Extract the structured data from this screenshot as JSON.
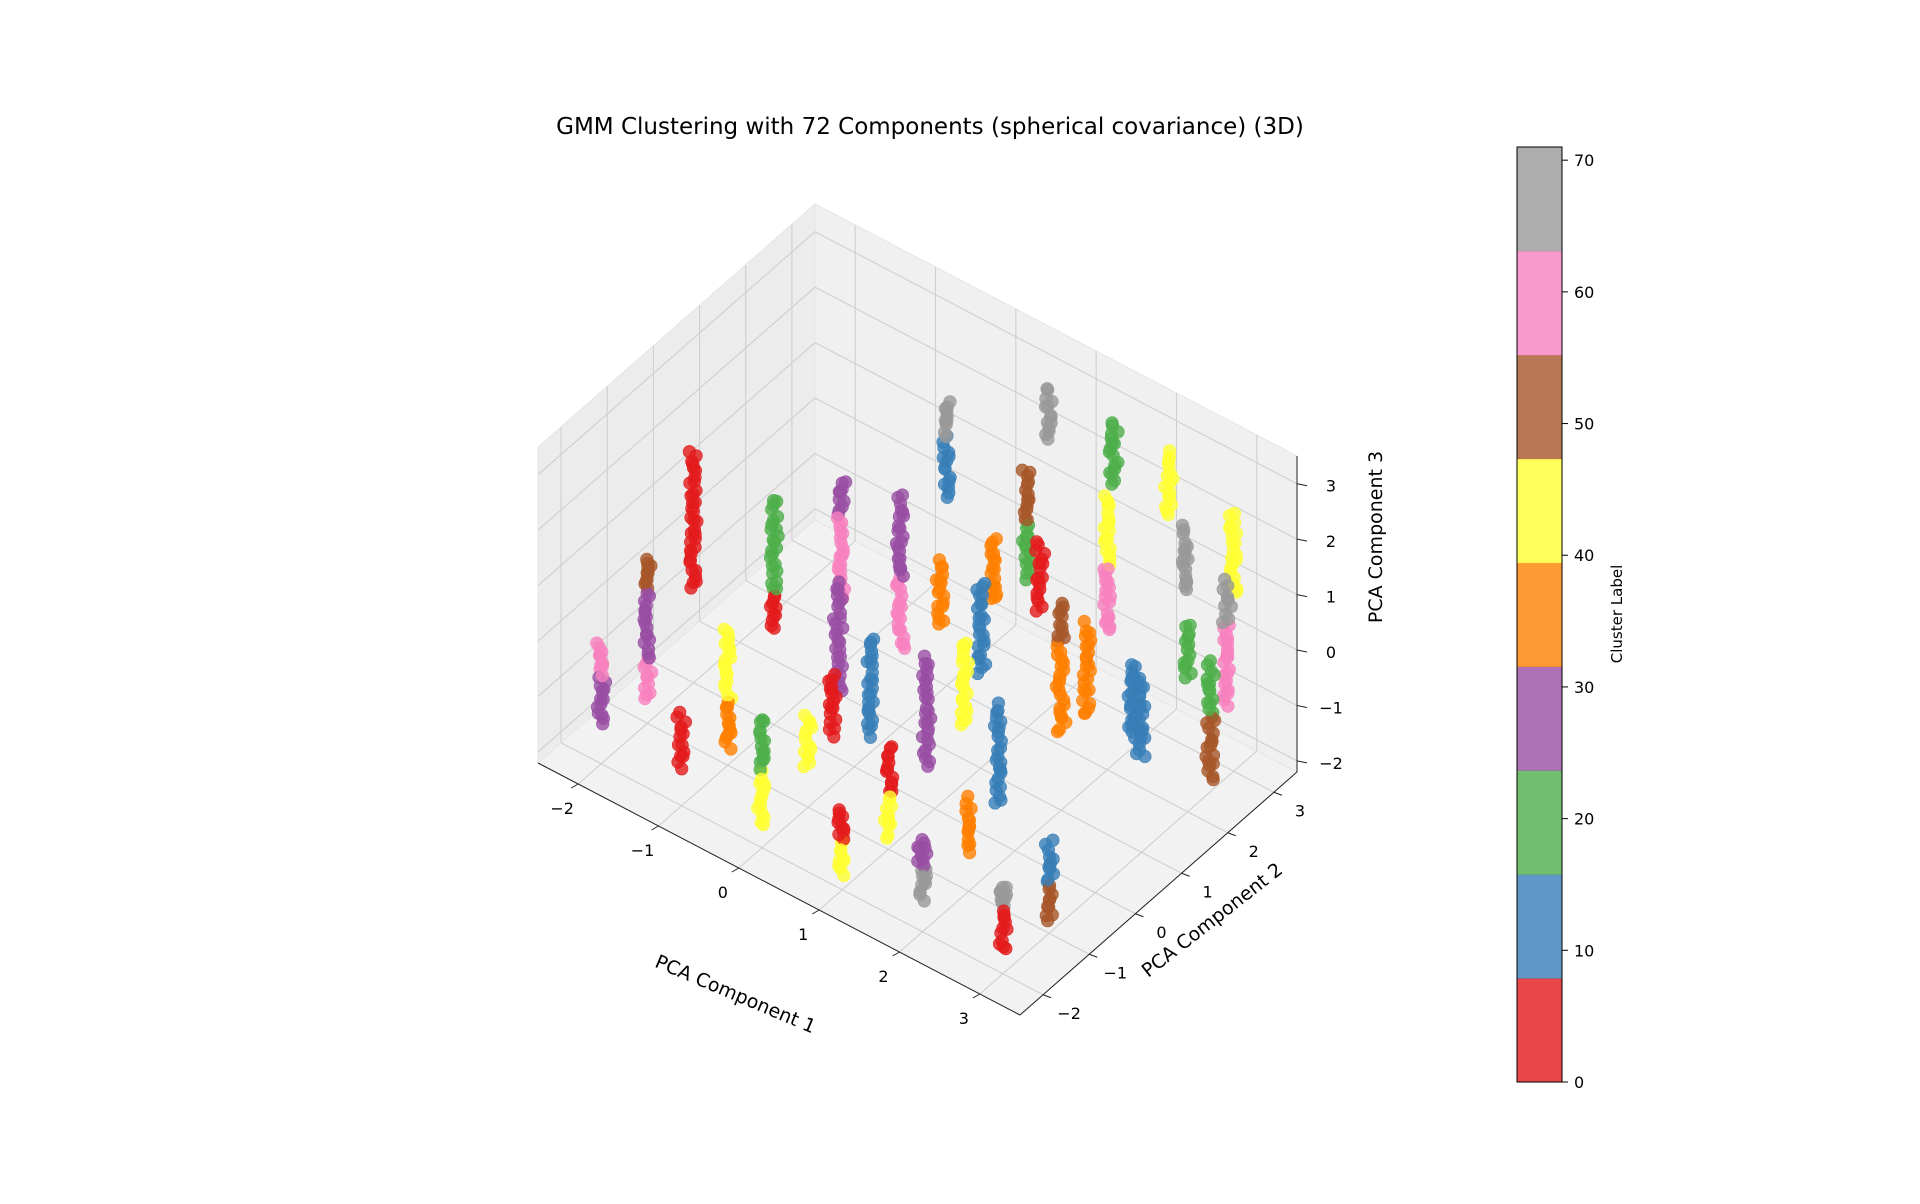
{
  "chart_data": {
    "type": "scatter",
    "projection": "3d",
    "title": "GMM Clustering with 72 Components (spherical covariance) (3D)",
    "xlabel": "PCA Component 1",
    "ylabel": "PCA Component 2",
    "zlabel": "PCA Component 3",
    "xlim": [
      -2.5,
      3.5
    ],
    "ylim": [
      -2.5,
      3.5
    ],
    "zlim": [
      -2.2,
      3.5
    ],
    "xticks": [
      -2,
      -1,
      0,
      1,
      2,
      3
    ],
    "yticks": [
      -2,
      -1,
      0,
      1,
      2,
      3
    ],
    "zticks": [
      -2,
      -1,
      0,
      1,
      2,
      3
    ],
    "grid": true,
    "colormap": "Set1",
    "colormap_colors": [
      "#e41a1c",
      "#377eb8",
      "#4daf4a",
      "#984ea3",
      "#ff7f00",
      "#ffff33",
      "#a65628",
      "#f781bf",
      "#999999"
    ],
    "colorbar": {
      "label": "Cluster Label",
      "range": [
        0,
        71
      ],
      "ticks": [
        0,
        10,
        20,
        30,
        40,
        50,
        60,
        70
      ],
      "band_colors": [
        "#e41a1c",
        "#377eb8",
        "#4daf4a",
        "#984ea3",
        "#ff7f00",
        "#ffff33",
        "#a65628",
        "#f781bf",
        "#999999"
      ]
    },
    "point_alpha": 0.8,
    "clusters": [
      {
        "x": -2.0,
        "y": 0.0,
        "z0": 0.5,
        "z1": 2.0,
        "label": 6
      },
      {
        "x": -2.0,
        "y": 0.0,
        "z0": -0.5,
        "z1": 0.5,
        "label": 0
      },
      {
        "x": -1.0,
        "y": 0.0,
        "z0": 0.2,
        "z1": 1.9,
        "label": 20
      },
      {
        "x": -1.0,
        "y": 0.0,
        "z0": -0.5,
        "z1": 0.2,
        "label": 0
      },
      {
        "x": -0.2,
        "y": 0.0,
        "z0": -1.0,
        "z1": 1.0,
        "label": 25
      },
      {
        "x": 0.2,
        "y": 0.0,
        "z0": -1.5,
        "z1": 0.3,
        "label": 15
      },
      {
        "x": 0.9,
        "y": 0.0,
        "z0": -1.5,
        "z1": 0.5,
        "label": 25
      },
      {
        "x": 1.8,
        "y": 0.0,
        "z0": -1.5,
        "z1": 0.3,
        "label": 15
      },
      {
        "x": -2.0,
        "y": -1.0,
        "z0": -1.0,
        "z1": 0.2,
        "label": 30
      },
      {
        "x": -2.0,
        "y": -1.0,
        "z0": 0.2,
        "z1": 0.8,
        "label": 53
      },
      {
        "x": -2.0,
        "y": -1.0,
        "z0": -1.8,
        "z1": -1.0,
        "label": 62
      },
      {
        "x": -1.0,
        "y": -1.0,
        "z0": -1.0,
        "z1": 0.3,
        "label": 43
      },
      {
        "x": -1.0,
        "y": -1.0,
        "z0": -1.9,
        "z1": -1.0,
        "label": 35
      },
      {
        "x": 0.0,
        "y": -1.0,
        "z0": -1.5,
        "z1": -0.5,
        "label": 42
      },
      {
        "x": 0.3,
        "y": -1.0,
        "z0": -0.7,
        "z1": 0.5,
        "label": 5
      },
      {
        "x": 1.0,
        "y": -1.0,
        "z0": -1.2,
        "z1": -0.3,
        "label": 3
      },
      {
        "x": 1.0,
        "y": -1.0,
        "z0": -2.0,
        "z1": -1.2,
        "label": 45
      },
      {
        "x": 2.0,
        "y": -1.0,
        "z0": -1.5,
        "z1": -0.5,
        "label": 35
      },
      {
        "x": 3.0,
        "y": -1.0,
        "z0": -1.3,
        "z1": -0.5,
        "label": 8
      },
      {
        "x": 3.0,
        "y": -1.0,
        "z0": -2.0,
        "z1": -1.3,
        "label": 53
      },
      {
        "x": -2.0,
        "y": -2.0,
        "z0": -1.5,
        "z1": -0.6,
        "label": 30
      },
      {
        "x": -2.0,
        "y": -2.0,
        "z0": -0.6,
        "z1": 0.0,
        "label": 62
      },
      {
        "x": -1.0,
        "y": -2.0,
        "z0": -1.5,
        "z1": -0.5,
        "label": 0
      },
      {
        "x": 0.0,
        "y": -2.0,
        "z0": -1.8,
        "z1": -0.8,
        "label": 42
      },
      {
        "x": 0.0,
        "y": -2.0,
        "z0": -0.8,
        "z1": 0.2,
        "label": 20
      },
      {
        "x": 1.0,
        "y": -2.0,
        "z0": -1.9,
        "z1": -1.3,
        "label": 42
      },
      {
        "x": 1.0,
        "y": -2.0,
        "z0": -1.3,
        "z1": -0.7,
        "label": 0
      },
      {
        "x": 2.0,
        "y": -2.0,
        "z0": -1.6,
        "z1": -1.0,
        "label": 70
      },
      {
        "x": 2.0,
        "y": -2.0,
        "z0": -1.0,
        "z1": -0.5,
        "label": 30
      },
      {
        "x": 3.0,
        "y": -2.0,
        "z0": -1.8,
        "z1": -1.0,
        "label": 0
      },
      {
        "x": 3.0,
        "y": -2.0,
        "z0": -1.0,
        "z1": -0.6,
        "label": 70
      },
      {
        "x": 0.0,
        "y": 1.0,
        "z0": 0.5,
        "z1": 2.0,
        "label": 30
      },
      {
        "x": 0.0,
        "y": 1.0,
        "z0": -0.8,
        "z1": 0.5,
        "label": 62
      },
      {
        "x": 0.5,
        "y": 1.0,
        "z0": 0.0,
        "z1": 1.2,
        "label": 37
      },
      {
        "x": 1.0,
        "y": 1.0,
        "z0": -0.5,
        "z1": 1.2,
        "label": 12
      },
      {
        "x": 2.0,
        "y": 1.0,
        "z0": -0.8,
        "z1": 0.8,
        "label": 37
      },
      {
        "x": 2.0,
        "y": 1.0,
        "z0": 0.8,
        "z1": 1.6,
        "label": 53
      },
      {
        "x": 3.0,
        "y": 1.0,
        "z0": -0.5,
        "z1": 1.0,
        "label": 12
      },
      {
        "x": 0.0,
        "y": 2.0,
        "z0": 1.2,
        "z1": 2.3,
        "label": 12
      },
      {
        "x": 0.0,
        "y": 2.0,
        "z0": 2.3,
        "z1": 3.0,
        "label": 70
      },
      {
        "x": 1.0,
        "y": 2.0,
        "z0": 1.5,
        "z1": 2.5,
        "label": 53
      },
      {
        "x": 1.0,
        "y": 2.0,
        "z0": 0.5,
        "z1": 1.5,
        "label": 20
      },
      {
        "x": 2.0,
        "y": 2.0,
        "z0": 1.5,
        "z1": 2.8,
        "label": 42
      },
      {
        "x": 2.0,
        "y": 2.0,
        "z0": 0.3,
        "z1": 1.5,
        "label": 62
      },
      {
        "x": 3.0,
        "y": 2.0,
        "z0": 0.2,
        "z1": 1.2,
        "label": 20
      },
      {
        "x": 0.7,
        "y": 3.0,
        "z0": 2.0,
        "z1": 3.0,
        "label": 70
      },
      {
        "x": 1.5,
        "y": 3.0,
        "z0": 1.8,
        "z1": 3.0,
        "label": 20
      },
      {
        "x": 2.2,
        "y": 3.0,
        "z0": 1.8,
        "z1": 3.0,
        "label": 42
      },
      {
        "x": 2.5,
        "y": 2.8,
        "z0": 0.8,
        "z1": 2.0,
        "label": 70
      },
      {
        "x": 3.0,
        "y": 3.0,
        "z0": 1.0,
        "z1": 2.5,
        "label": 42
      },
      {
        "x": 3.2,
        "y": 2.5,
        "z0": -0.5,
        "z1": 1.0,
        "label": 62
      },
      {
        "x": 3.2,
        "y": 2.5,
        "z0": 1.0,
        "z1": 1.8,
        "label": 70
      },
      {
        "x": 3.4,
        "y": 1.8,
        "z0": 0.0,
        "z1": 1.0,
        "label": 20
      },
      {
        "x": 3.4,
        "y": 1.8,
        "z0": -1.2,
        "z1": 0.0,
        "label": 53
      },
      {
        "x": 2.6,
        "y": 1.5,
        "z0": -0.8,
        "z1": 0.6,
        "label": 12
      },
      {
        "x": 2.2,
        "y": 1.2,
        "z0": -0.5,
        "z1": 1.2,
        "label": 35
      },
      {
        "x": 1.4,
        "y": 1.6,
        "z0": 0.5,
        "z1": 1.8,
        "label": 6
      },
      {
        "x": 0.8,
        "y": 1.6,
        "z0": 0.2,
        "z1": 1.4,
        "label": 35
      },
      {
        "x": 1.2,
        "y": 0.3,
        "z0": -0.8,
        "z1": 0.8,
        "label": 45
      },
      {
        "x": -0.5,
        "y": 0.6,
        "z0": 0.0,
        "z1": 1.5,
        "label": 62
      },
      {
        "x": -0.5,
        "y": 0.6,
        "z0": 1.5,
        "z1": 2.2,
        "label": 30
      }
    ]
  }
}
